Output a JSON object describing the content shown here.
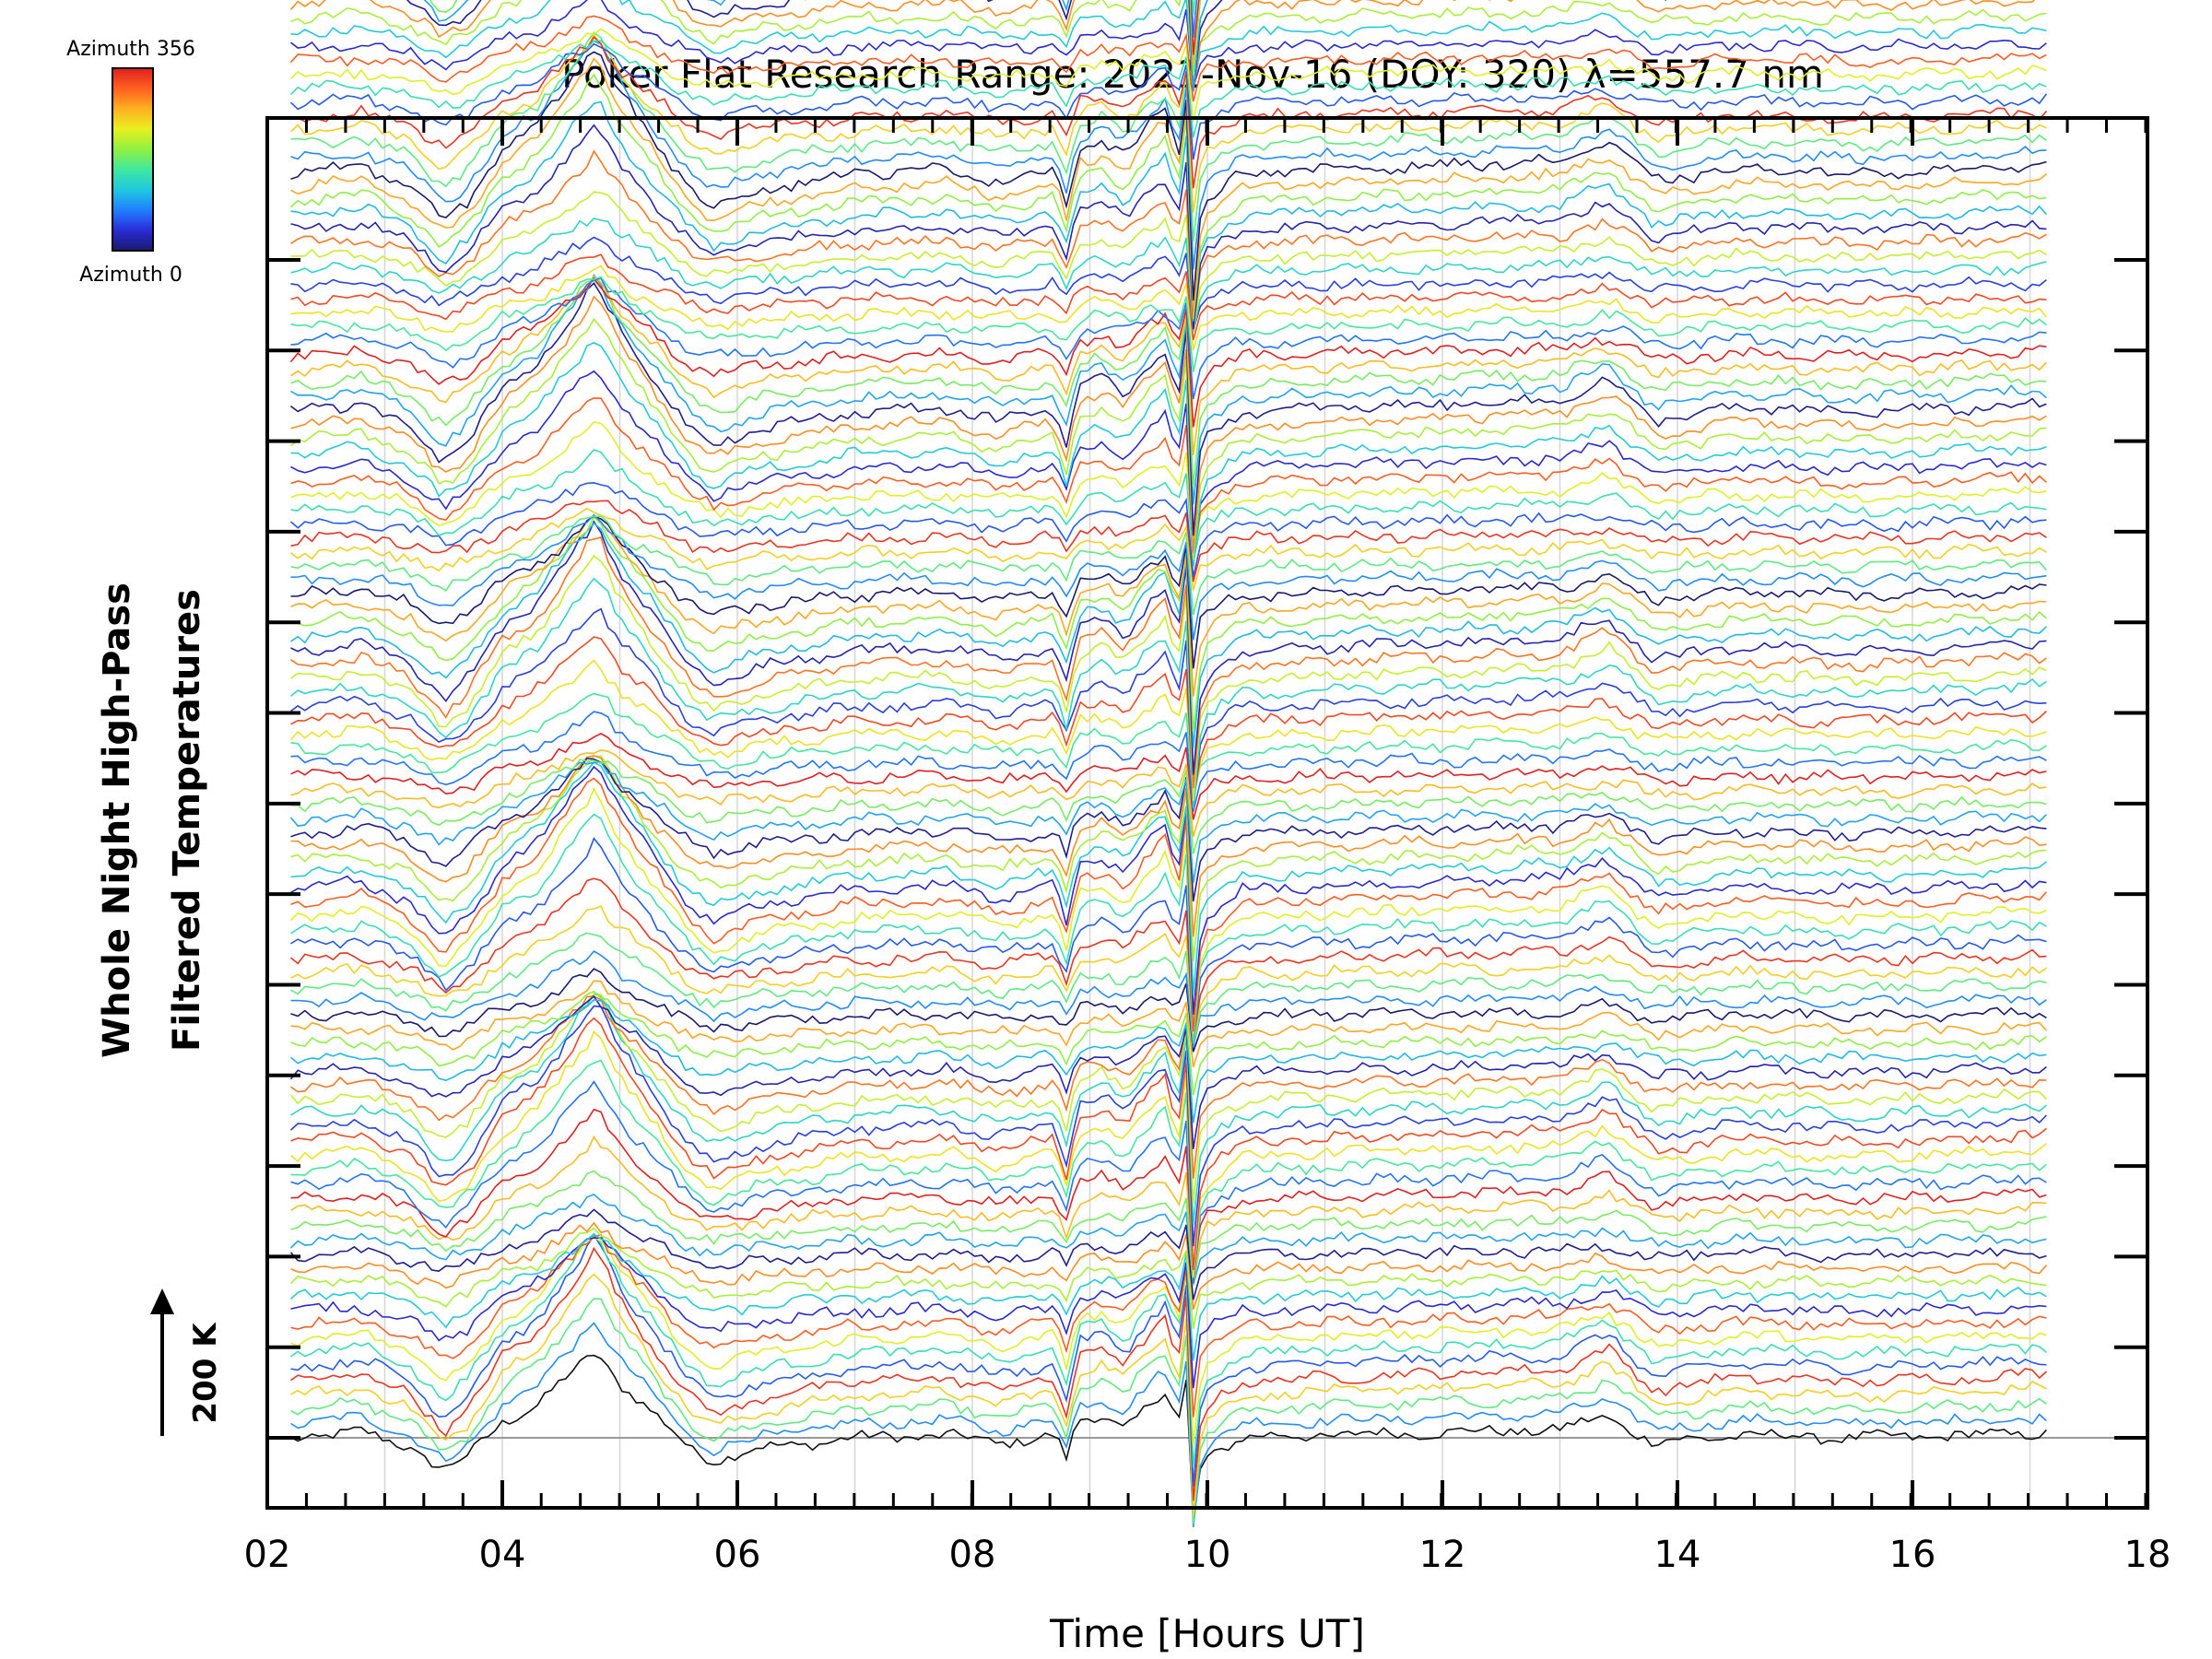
{
  "chart_data": {
    "type": "line",
    "title": "Poker Flat Research Range: 2021-Nov-16 (DOY: 320) λ=557.7 nm",
    "xlabel": "Time [Hours UT]",
    "ylabel_line1": "Whole Night High-Pass",
    "ylabel_line2": "Filtered Temperatures",
    "xlim": [
      2,
      18
    ],
    "x_ticks": [
      2,
      4,
      6,
      8,
      10,
      12,
      14,
      16,
      18
    ],
    "x_tick_labels": [
      "02",
      "04",
      "06",
      "08",
      "10",
      "12",
      "14",
      "16",
      "18"
    ],
    "x_minor_step_hours": 0.333,
    "data_start_hours": 2.2,
    "data_end_hours": 17.15,
    "series_count": 134,
    "series_spacing_K": 20.6,
    "y_major_ticks": 14,
    "scale_bar_label": "200 K",
    "scale_bar_value_K": 200,
    "baseline_K": 0,
    "legend": {
      "type": "colorbar",
      "top_label": "Azimuth 356",
      "bottom_label": "Azimuth 0",
      "min_deg": 0,
      "max_deg": 356,
      "colors": [
        "#1a1a6e",
        "#2a2ad8",
        "#2080ff",
        "#20c8e0",
        "#40e8a0",
        "#90f040",
        "#e8f020",
        "#ffb020",
        "#ff6020",
        "#e02020"
      ]
    },
    "common_signal": {
      "description_hours_vs_K": "shared perturbation shape applied to every series (K)",
      "x": [
        2.2,
        2.8,
        3.2,
        3.5,
        3.7,
        4.0,
        4.3,
        4.6,
        4.8,
        5.0,
        5.3,
        5.6,
        5.8,
        6.2,
        7.0,
        7.8,
        8.2,
        8.7,
        8.8,
        8.9,
        9.1,
        9.3,
        9.5,
        9.65,
        9.75,
        9.82,
        9.88,
        9.95,
        10.1,
        10.3,
        11.0,
        12.0,
        13.0,
        13.4,
        13.8,
        14.5,
        15.5,
        16.5,
        17.15
      ],
      "y": [
        0,
        10,
        -15,
        -60,
        -35,
        30,
        60,
        120,
        160,
        100,
        40,
        -20,
        -40,
        -20,
        0,
        5,
        -10,
        5,
        -40,
        30,
        40,
        20,
        60,
        80,
        20,
        100,
        -150,
        -40,
        -20,
        0,
        5,
        10,
        15,
        40,
        -10,
        5,
        0,
        5,
        10
      ]
    }
  }
}
